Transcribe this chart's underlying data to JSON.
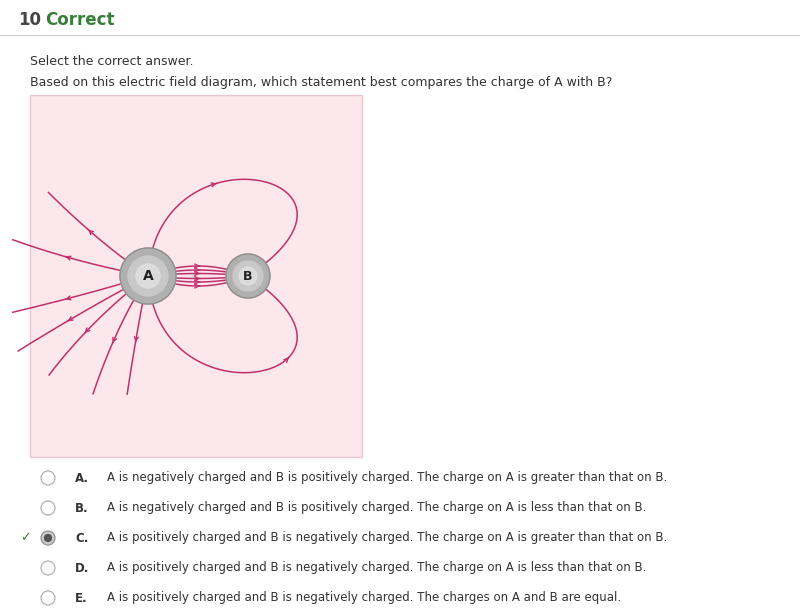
{
  "title_number": "10",
  "title_label": "Correct",
  "title_color": "#3a7d3a",
  "question_line1": "Select the correct answer.",
  "question_line2": "Based on this electric field diagram, which statement best compares the charge of A with B?",
  "bg_color": "#ffffff",
  "diagram_bg": "#fce8ec",
  "field_line_color": "#c0306a",
  "options": [
    {
      "label": "A.",
      "text": "A is negatively charged and B is positively charged. The charge on A is greater than that on B.",
      "correct": false
    },
    {
      "label": "B.",
      "text": "A is negatively charged and B is positively charged. The charge on A is less than that on B.",
      "correct": false
    },
    {
      "label": "C.",
      "text": "A is positively charged and B is negatively charged. The charge on A is greater than that on B.",
      "correct": true
    },
    {
      "label": "D.",
      "text": "A is positively charged and B is negatively charged. The charge on A is less than that on B.",
      "correct": false
    },
    {
      "label": "E.",
      "text": "A is positively charged and B is negatively charged. The charges on A and B are equal.",
      "correct": false
    }
  ]
}
